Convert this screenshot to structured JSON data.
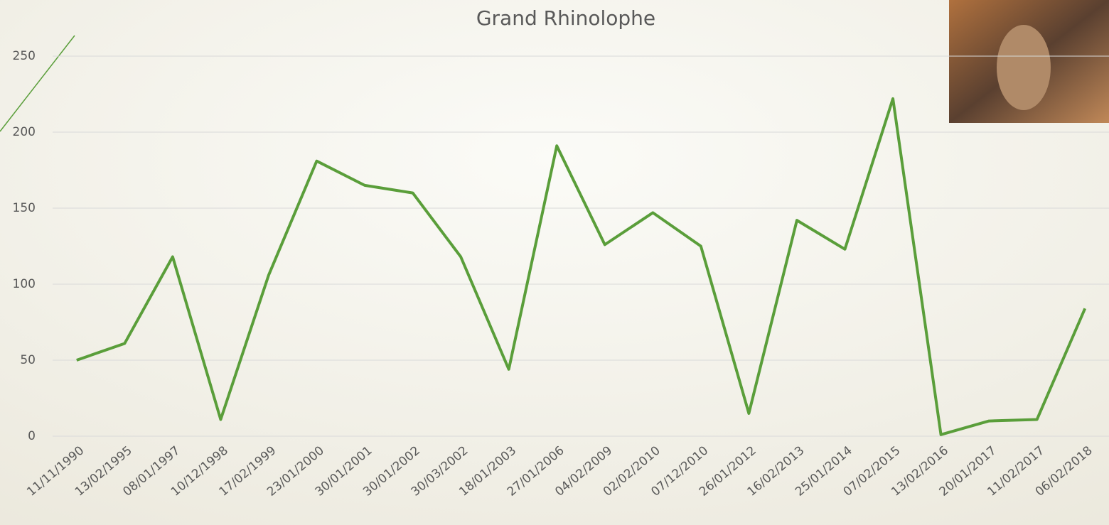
{
  "chart_data": {
    "type": "line",
    "title": "Grand Rhinolophe",
    "categories": [
      "11/11/1990",
      "13/02/1995",
      "08/01/1997",
      "10/12/1998",
      "17/02/1999",
      "23/01/2000",
      "30/01/2001",
      "30/01/2002",
      "30/03/2002",
      "18/01/2003",
      "27/01/2006",
      "04/02/2009",
      "02/02/2010",
      "07/12/2010",
      "26/01/2012",
      "16/02/2013",
      "25/01/2014",
      "07/02/2015",
      "13/02/2016",
      "20/01/2017",
      "11/02/2017",
      "06/02/2018"
    ],
    "series": [
      {
        "name": "Grand Rhinolophe",
        "color": "#5a9e3a",
        "values": [
          50,
          61,
          118,
          11,
          106,
          181,
          165,
          160,
          118,
          44,
          191,
          126,
          147,
          125,
          15,
          142,
          123,
          222,
          1,
          10,
          11,
          84
        ]
      }
    ],
    "ylim": [
      0,
      250
    ],
    "yticks": [
      0,
      50,
      100,
      150,
      200,
      250
    ],
    "grid": true
  }
}
